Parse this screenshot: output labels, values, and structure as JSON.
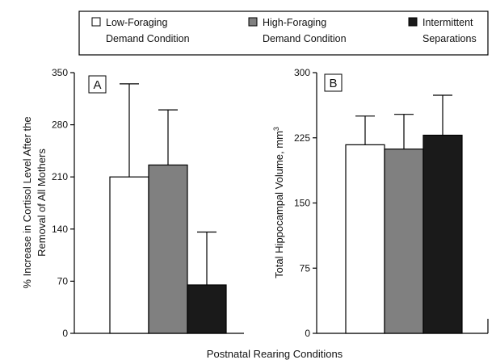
{
  "legend": [
    {
      "line1": "Low-Foraging",
      "line2": "Demand Condition",
      "color": "#ffffff"
    },
    {
      "line1": "High-Foraging",
      "line2": "Demand Condition",
      "color": "#808080"
    },
    {
      "line1": "Intermittent",
      "line2": "Separations",
      "color": "#1a1a1a"
    }
  ],
  "xlabel": "Postnatal Rearing Conditions",
  "chart_data": [
    {
      "type": "bar",
      "panel": "A",
      "ylabel_line1": "% Increase in Cortisol Level After the",
      "ylabel_line2": "Removal of All Mothers",
      "ylim": [
        0,
        350
      ],
      "yticks": [
        "0",
        "70",
        "140",
        "210",
        "280",
        "350"
      ],
      "categories": [
        "Low-Foraging Demand Condition",
        "High-Foraging Demand Condition",
        "Intermittent Separations"
      ],
      "values": [
        210,
        226,
        65
      ],
      "error_upper": [
        335,
        300,
        136
      ],
      "colors": [
        "#ffffff",
        "#808080",
        "#1a1a1a"
      ]
    },
    {
      "type": "bar",
      "panel": "B",
      "ylabel_line1": "Total Hippocampal Volume, mm",
      "ylabel_sup": "3",
      "ylim": [
        0,
        300
      ],
      "yticks": [
        "0",
        "75",
        "150",
        "225",
        "300"
      ],
      "categories": [
        "Low-Foraging Demand Condition",
        "High-Foraging Demand Condition",
        "Intermittent Separations"
      ],
      "values": [
        217,
        212,
        228
      ],
      "error_upper": [
        250,
        252,
        274
      ],
      "colors": [
        "#ffffff",
        "#808080",
        "#1a1a1a"
      ]
    }
  ]
}
